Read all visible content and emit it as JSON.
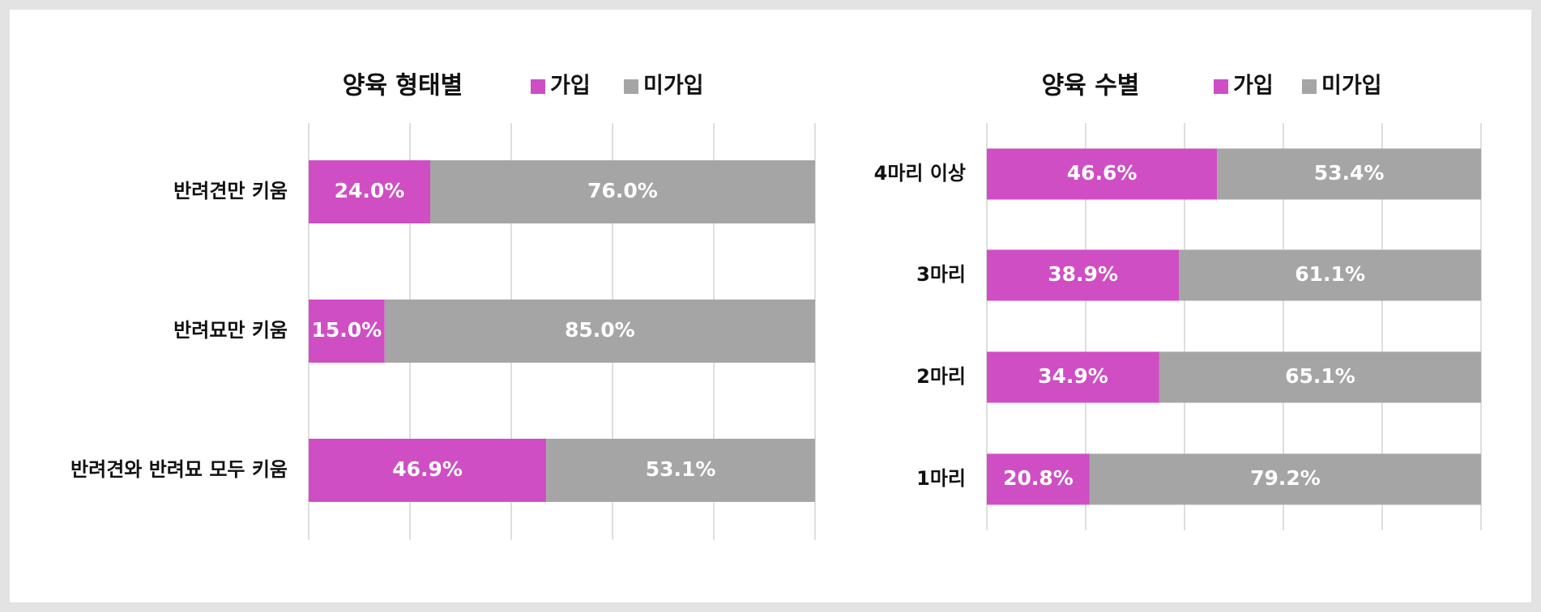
{
  "chart_data": [
    {
      "type": "bar",
      "orientation": "horizontal",
      "stacked": true,
      "title": "양육 형태별",
      "categories": [
        "반려견만 키움",
        "반려묘만 키움",
        "반려견와 반려묘 모두 키움"
      ],
      "series": [
        {
          "name": "가입",
          "color": "#cf4ec4",
          "values": [
            24.0,
            15.0,
            46.9
          ],
          "value_labels": [
            "24.0%",
            "15.0%",
            "46.9%"
          ]
        },
        {
          "name": "미가입",
          "color": "#a5a5a5",
          "values": [
            76.0,
            85.0,
            53.1
          ],
          "value_labels": [
            "76.0%",
            "85.0%",
            "53.1%"
          ]
        }
      ],
      "xlim": [
        0,
        100
      ],
      "xticks": [
        0,
        20,
        40,
        60,
        80,
        100
      ],
      "grid": true,
      "legend": "top"
    },
    {
      "type": "bar",
      "orientation": "horizontal",
      "stacked": true,
      "title": "양육 수별",
      "categories": [
        "4마리 이상",
        "3마리",
        "2마리",
        "1마리"
      ],
      "series": [
        {
          "name": "가입",
          "color": "#cf4ec4",
          "values": [
            46.6,
            38.9,
            34.9,
            20.8
          ],
          "value_labels": [
            "46.6%",
            "38.9%",
            "34.9%",
            "20.8%"
          ]
        },
        {
          "name": "미가입",
          "color": "#a5a5a5",
          "values": [
            53.4,
            61.1,
            65.1,
            79.2
          ],
          "value_labels": [
            "53.4%",
            "61.1%",
            "65.1%",
            "79.2%"
          ]
        }
      ],
      "xlim": [
        0,
        100
      ],
      "xticks": [
        0,
        20,
        40,
        60,
        80,
        100
      ],
      "grid": true,
      "legend": "top"
    }
  ]
}
